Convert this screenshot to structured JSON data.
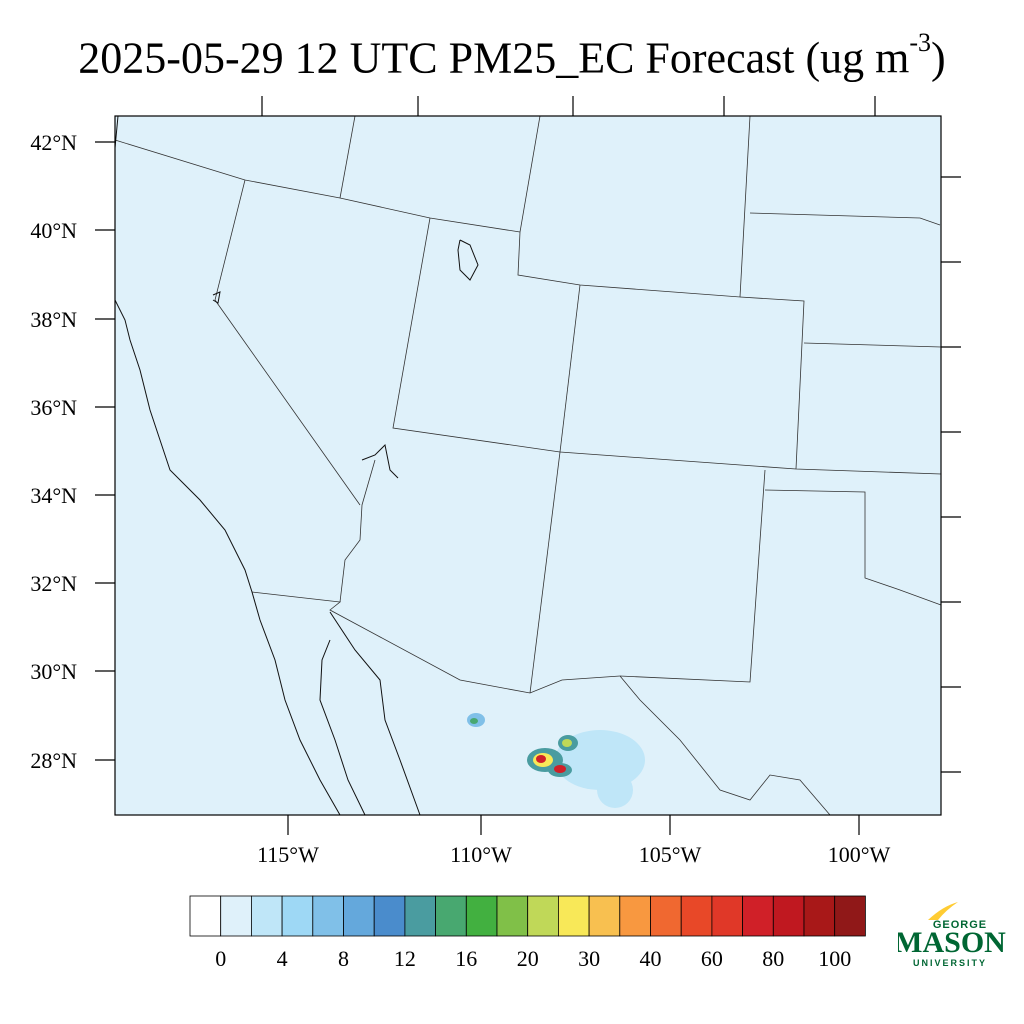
{
  "title": {
    "main": "2025-05-29 12 UTC PM25_EC Forecast (ug m",
    "sup": "-3",
    "close": ")"
  },
  "map": {
    "lat_labels": [
      "42°N",
      "40°N",
      "38°N",
      "36°N",
      "34°N",
      "32°N",
      "30°N",
      "28°N"
    ],
    "lon_labels": [
      "115°W",
      "110°W",
      "105°W",
      "100°W"
    ],
    "background_color": "#dff1fa",
    "plumes": [
      {
        "lat": 28.9,
        "lon": -110.2,
        "peak": 14
      },
      {
        "lat": 28.2,
        "lon": -108.4,
        "peak": 100
      },
      {
        "lat": 28.5,
        "lon": -107.8,
        "peak": 30
      },
      {
        "lat": 27.8,
        "lon": -107.8,
        "peak": 100
      }
    ]
  },
  "colorbar": {
    "labels": [
      "0",
      "4",
      "8",
      "12",
      "16",
      "20",
      "30",
      "40",
      "60",
      "80",
      "100"
    ],
    "colors": [
      "#ffffff",
      "#dff1fa",
      "#bfe6f8",
      "#9ed8f5",
      "#80c0e8",
      "#64a8dc",
      "#4a8ccc",
      "#4a9ca0",
      "#48a870",
      "#42b040",
      "#80c048",
      "#c0d858",
      "#f8e858",
      "#f8c050",
      "#f89840",
      "#f06830",
      "#e84828",
      "#e03828",
      "#d02028",
      "#c01820",
      "#a81818",
      "#901818"
    ]
  },
  "logo": {
    "line1": "GEORGE",
    "line2": "MASON",
    "line3": "UNIVERSITY",
    "color_green": "#006633",
    "color_gold": "#ffcc33"
  }
}
